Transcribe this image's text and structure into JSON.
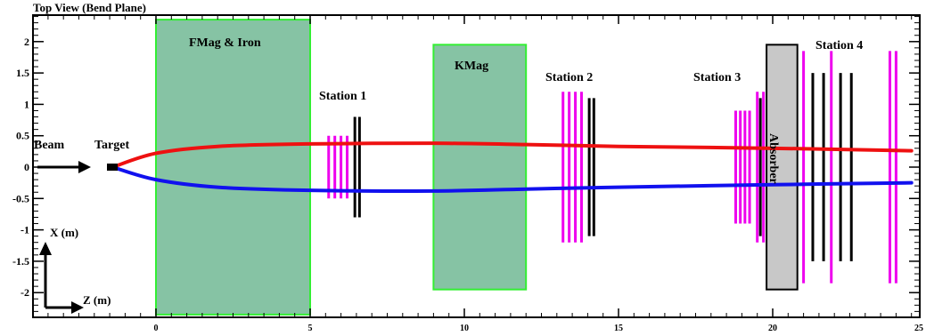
{
  "title": "Top View (Bend Plane)",
  "axes": {
    "x_label": "Z (m)",
    "y_label": "X (m)",
    "x_ticks": [
      "0",
      "5",
      "10",
      "15",
      "20",
      "25"
    ],
    "y_ticks": [
      "2",
      "1.5",
      "1",
      "0.5",
      "0",
      "-0.5",
      "-1",
      "-1.5",
      "-2"
    ]
  },
  "labels": {
    "beam": "Beam",
    "target": "Target",
    "fmag": "FMag & Iron",
    "kmag": "KMag",
    "station1": "Station 1",
    "station2": "Station 2",
    "station3": "Station 3",
    "station4": "Station 4",
    "absorber": "Absorber"
  },
  "colors": {
    "magnet_fill": "#86c3a4",
    "magnet_border": "#33ee33",
    "detector_magenta": "#ee00ee",
    "detector_black": "#000000",
    "absorber_fill": "#c8c8c8",
    "track_positive": "#ee1111",
    "track_negative": "#1111ee"
  },
  "chart_data": {
    "type": "diagram",
    "xlim": [
      -4.0,
      25.0
    ],
    "ylim": [
      -2.35,
      2.5
    ],
    "magnets": [
      {
        "name": "FMag & Iron",
        "z": [
          0.0,
          5.0
        ],
        "x": [
          -2.35,
          2.35
        ]
      },
      {
        "name": "KMag",
        "z": [
          9.0,
          12.0
        ],
        "x": [
          -1.95,
          1.95
        ]
      }
    ],
    "absorber": {
      "z": [
        19.8,
        20.8
      ],
      "x": [
        -1.95,
        1.95
      ]
    },
    "detector_planes": [
      {
        "z": 5.6,
        "half": 0.5,
        "color": "magenta"
      },
      {
        "z": 5.8,
        "half": 0.5,
        "color": "magenta"
      },
      {
        "z": 6.0,
        "half": 0.5,
        "color": "magenta"
      },
      {
        "z": 6.2,
        "half": 0.5,
        "color": "magenta"
      },
      {
        "z": 6.45,
        "half": 0.8,
        "color": "black"
      },
      {
        "z": 6.6,
        "half": 0.8,
        "color": "black"
      },
      {
        "z": 13.2,
        "half": 1.2,
        "color": "magenta"
      },
      {
        "z": 13.4,
        "half": 1.2,
        "color": "magenta"
      },
      {
        "z": 13.6,
        "half": 1.2,
        "color": "magenta"
      },
      {
        "z": 13.8,
        "half": 1.2,
        "color": "magenta"
      },
      {
        "z": 14.05,
        "half": 1.1,
        "color": "black"
      },
      {
        "z": 14.2,
        "half": 1.1,
        "color": "black"
      },
      {
        "z": 18.8,
        "half": 0.9,
        "color": "magenta"
      },
      {
        "z": 18.95,
        "half": 0.9,
        "color": "magenta"
      },
      {
        "z": 19.1,
        "half": 0.9,
        "color": "magenta"
      },
      {
        "z": 19.25,
        "half": 0.9,
        "color": "magenta"
      },
      {
        "z": 19.5,
        "half": 1.2,
        "color": "magenta"
      },
      {
        "z": 19.7,
        "half": 1.2,
        "color": "magenta"
      },
      {
        "z": 19.6,
        "half": 1.1,
        "color": "black"
      },
      {
        "z": 21.0,
        "half": 1.85,
        "color": "magenta"
      },
      {
        "z": 21.3,
        "half": 1.5,
        "color": "black"
      },
      {
        "z": 21.65,
        "half": 1.5,
        "color": "black"
      },
      {
        "z": 21.9,
        "half": 1.85,
        "color": "magenta"
      },
      {
        "z": 22.2,
        "half": 1.5,
        "color": "black"
      },
      {
        "z": 22.55,
        "half": 1.5,
        "color": "black"
      },
      {
        "z": 23.8,
        "half": 1.85,
        "color": "magenta"
      },
      {
        "z": 24.0,
        "half": 1.85,
        "color": "magenta"
      }
    ],
    "tracks": [
      {
        "name": "positive",
        "color": "red",
        "points": [
          [
            -1.4,
            0.0
          ],
          [
            0.0,
            0.22
          ],
          [
            2.0,
            0.33
          ],
          [
            5.0,
            0.37
          ],
          [
            9.0,
            0.38
          ],
          [
            12.0,
            0.36
          ],
          [
            15.0,
            0.33
          ],
          [
            20.0,
            0.3
          ],
          [
            24.5,
            0.26
          ]
        ]
      },
      {
        "name": "negative",
        "color": "blue",
        "points": [
          [
            -1.4,
            0.0
          ],
          [
            0.0,
            -0.2
          ],
          [
            2.0,
            -0.32
          ],
          [
            5.0,
            -0.37
          ],
          [
            9.0,
            -0.38
          ],
          [
            12.0,
            -0.35
          ],
          [
            15.0,
            -0.32
          ],
          [
            20.0,
            -0.28
          ],
          [
            24.5,
            -0.25
          ]
        ]
      }
    ]
  }
}
